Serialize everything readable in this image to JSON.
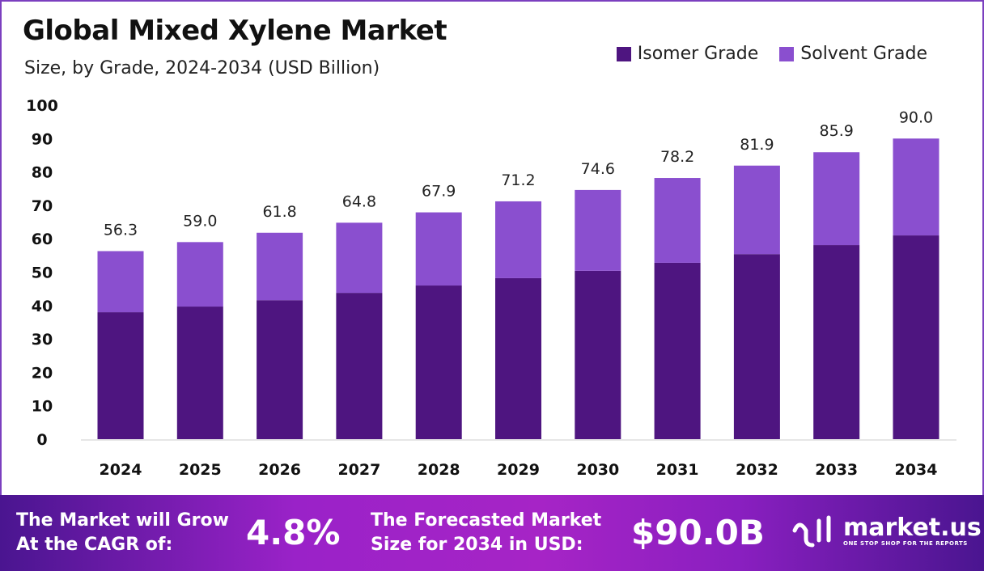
{
  "chart_data": {
    "type": "bar",
    "stacked": true,
    "title": "Global Mixed Xylene Market",
    "subtitle": "Size, by Grade, 2024-2034 (USD Billion)",
    "categories": [
      "2024",
      "2025",
      "2026",
      "2027",
      "2028",
      "2029",
      "2030",
      "2031",
      "2032",
      "2033",
      "2034"
    ],
    "series": [
      {
        "name": "Isomer Grade",
        "color": "#4e1580",
        "values": [
          38.0,
          39.7,
          41.6,
          43.8,
          46.0,
          48.2,
          50.4,
          52.8,
          55.4,
          58.1,
          61.0
        ]
      },
      {
        "name": "Solvent Grade",
        "color": "#8a4fcf",
        "values": [
          18.3,
          19.3,
          20.2,
          21.0,
          21.9,
          23.0,
          24.2,
          25.4,
          26.5,
          27.8,
          29.0
        ]
      }
    ],
    "totals": [
      "56.3",
      "59.0",
      "61.8",
      "64.8",
      "67.9",
      "71.2",
      "74.6",
      "78.2",
      "81.9",
      "85.9",
      "90.0"
    ],
    "ylim": [
      0,
      100
    ],
    "yticks": [
      "0",
      "10",
      "20",
      "30",
      "40",
      "50",
      "60",
      "70",
      "80",
      "90",
      "100"
    ],
    "grid": false,
    "legend_position": "top-right"
  },
  "footer": {
    "cagr_line1": "The Market will Grow",
    "cagr_line2": "At the CAGR of:",
    "cagr_value": "4.8%",
    "forecast_line1": "The Forecasted Market",
    "forecast_line2": "Size for 2034 in USD:",
    "forecast_value": "$90.0B",
    "logo_name": "market.us",
    "logo_tagline": "ONE STOP SHOP FOR THE REPORTS"
  }
}
